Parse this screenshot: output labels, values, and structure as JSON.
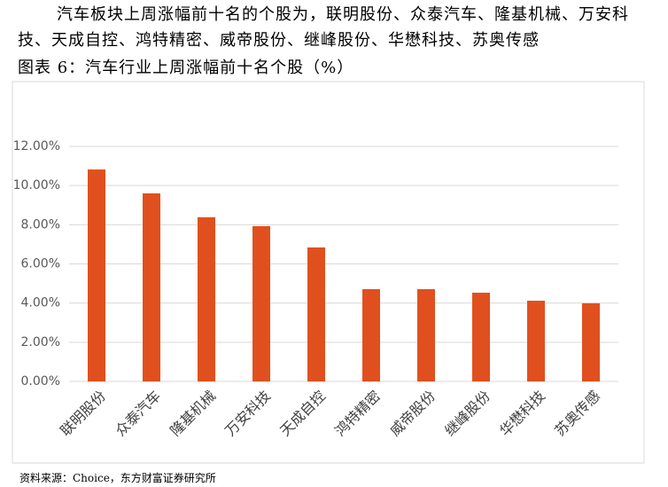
{
  "document": {
    "paragraph": "汽车板块上周涨幅前十名的个股为，联明股份、众泰汽车、隆基机械、万安科技、天成自控、鸿特精密、威帝股份、继峰股份、华懋科技、苏奥传感",
    "figure_caption": "图表 6：汽车行业上周涨幅前十名个股（%）",
    "source": "资料来源：Choice，东方财富证券研究所"
  },
  "chart_data": {
    "type": "bar",
    "categories": [
      "联明股份",
      "众泰汽车",
      "隆基机械",
      "万安科技",
      "天成自控",
      "鸿特精密",
      "威帝股份",
      "继峰股份",
      "华懋科技",
      "苏奥传感"
    ],
    "values": [
      10.82,
      9.6,
      8.38,
      7.93,
      6.84,
      4.71,
      4.71,
      4.53,
      4.12,
      3.99
    ],
    "color": "#e0501e",
    "ylim": [
      0,
      12
    ],
    "yticks": [
      {
        "value": 0,
        "label": "0.00%"
      },
      {
        "value": 2,
        "label": "2.00%"
      },
      {
        "value": 4,
        "label": "4.00%"
      },
      {
        "value": 6,
        "label": "6.00%"
      },
      {
        "value": 8,
        "label": "8.00%"
      },
      {
        "value": 10,
        "label": "10.00%"
      },
      {
        "value": 12,
        "label": "12.00%"
      }
    ],
    "grid": true
  }
}
